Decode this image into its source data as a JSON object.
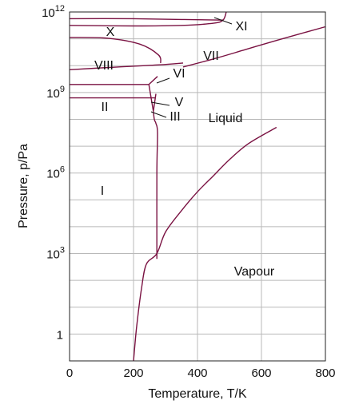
{
  "chart_data": {
    "type": "line",
    "xlabel": "Temperature, T/K",
    "ylabel": "Pressure, p/Pa",
    "xlim": [
      0,
      800
    ],
    "ylim_log10": [
      -1,
      12
    ],
    "y_scale": "log",
    "grid": true,
    "x_ticks": [
      "0",
      "200",
      "400",
      "600",
      "800"
    ],
    "y_ticks": [
      {
        "base": "1",
        "exp": ""
      },
      {
        "base": "10",
        "exp": "3"
      },
      {
        "base": "10",
        "exp": "6"
      },
      {
        "base": "10",
        "exp": "9"
      },
      {
        "base": "10",
        "exp": "12"
      }
    ],
    "region_labels": [
      "X",
      "XI",
      "VIII",
      "VII",
      "VI",
      "V",
      "II",
      "III",
      "Liquid",
      "I",
      "Vapour"
    ],
    "boundaries": [
      {
        "name": "vaporization",
        "points": [
          [
            200,
            -1
          ],
          [
            210,
            0.3
          ],
          [
            225,
            1.7
          ],
          [
            240,
            2.6
          ],
          [
            273,
            3.0
          ],
          [
            300,
            3.8
          ],
          [
            350,
            4.6
          ],
          [
            400,
            5.3
          ],
          [
            450,
            5.9
          ],
          [
            500,
            6.5
          ],
          [
            560,
            7.1
          ],
          [
            647,
            7.7
          ]
        ]
      },
      {
        "name": "melting I",
        "points": [
          [
            273,
            2.8
          ],
          [
            273,
            6.0
          ],
          [
            275,
            7.5
          ],
          [
            270,
            7.85
          ],
          [
            265,
            8.0
          ],
          [
            262,
            8.3
          ]
        ]
      },
      {
        "name": "melting VII",
        "points": [
          [
            355,
            9.95
          ],
          [
            450,
            10.25
          ],
          [
            550,
            10.6
          ],
          [
            650,
            10.95
          ],
          [
            800,
            11.45
          ]
        ]
      },
      {
        "name": "VI-VII boundary",
        "points": [
          [
            0,
            9.85
          ],
          [
            150,
            9.95
          ],
          [
            280,
            10.03
          ],
          [
            355,
            10.1
          ]
        ]
      },
      {
        "name": "VIII-VII boundary",
        "points": [
          [
            0,
            11.05
          ],
          [
            120,
            11.02
          ],
          [
            220,
            10.8
          ],
          [
            278,
            10.4
          ],
          [
            285,
            10.1
          ]
        ]
      },
      {
        "name": "X-VII boundary",
        "points": [
          [
            0,
            11.5
          ],
          [
            200,
            11.48
          ],
          [
            350,
            11.5
          ],
          [
            450,
            11.58
          ],
          [
            480,
            11.7
          ],
          [
            490,
            12
          ]
        ]
      },
      {
        "name": "X upper boundary",
        "points": [
          [
            0,
            11.75
          ],
          [
            200,
            11.75
          ],
          [
            350,
            11.72
          ],
          [
            460,
            11.7
          ],
          [
            480,
            11.7
          ]
        ]
      },
      {
        "name": "II-III-V upper",
        "points": [
          [
            0,
            9.3
          ],
          [
            200,
            9.3
          ],
          [
            248,
            9.3
          ]
        ]
      },
      {
        "name": "II-III-V lower",
        "points": [
          [
            0,
            8.8
          ],
          [
            240,
            8.8
          ],
          [
            262,
            8.8
          ]
        ]
      }
    ]
  }
}
